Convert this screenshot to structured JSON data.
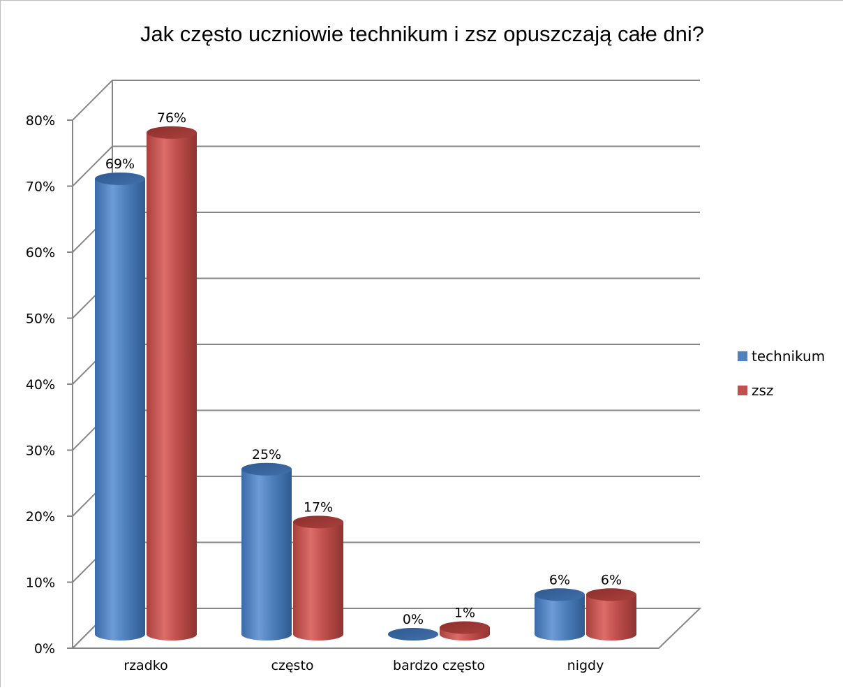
{
  "chart_data": {
    "type": "bar",
    "title": "Jak często uczniowie technikum i zsz opuszczają całe dni?",
    "categories": [
      "rzadko",
      "często",
      "bardzo często",
      "nigdy"
    ],
    "series": [
      {
        "name": "technikum",
        "values": [
          69,
          25,
          0,
          6
        ],
        "labels": [
          "69%",
          "25%",
          "0%",
          "6%"
        ],
        "color": "#4f81bd"
      },
      {
        "name": "zsz",
        "values": [
          76,
          17,
          1,
          6
        ],
        "labels": [
          "76%",
          "17%",
          "1%",
          "6%"
        ],
        "color": "#c0504d"
      }
    ],
    "ylim": [
      0,
      80
    ],
    "yticks": [
      "0%",
      "10%",
      "20%",
      "30%",
      "40%",
      "50%",
      "60%",
      "70%",
      "80%"
    ],
    "grid": true,
    "legend_position": "right",
    "bar_shape": "3d-cylinder"
  }
}
